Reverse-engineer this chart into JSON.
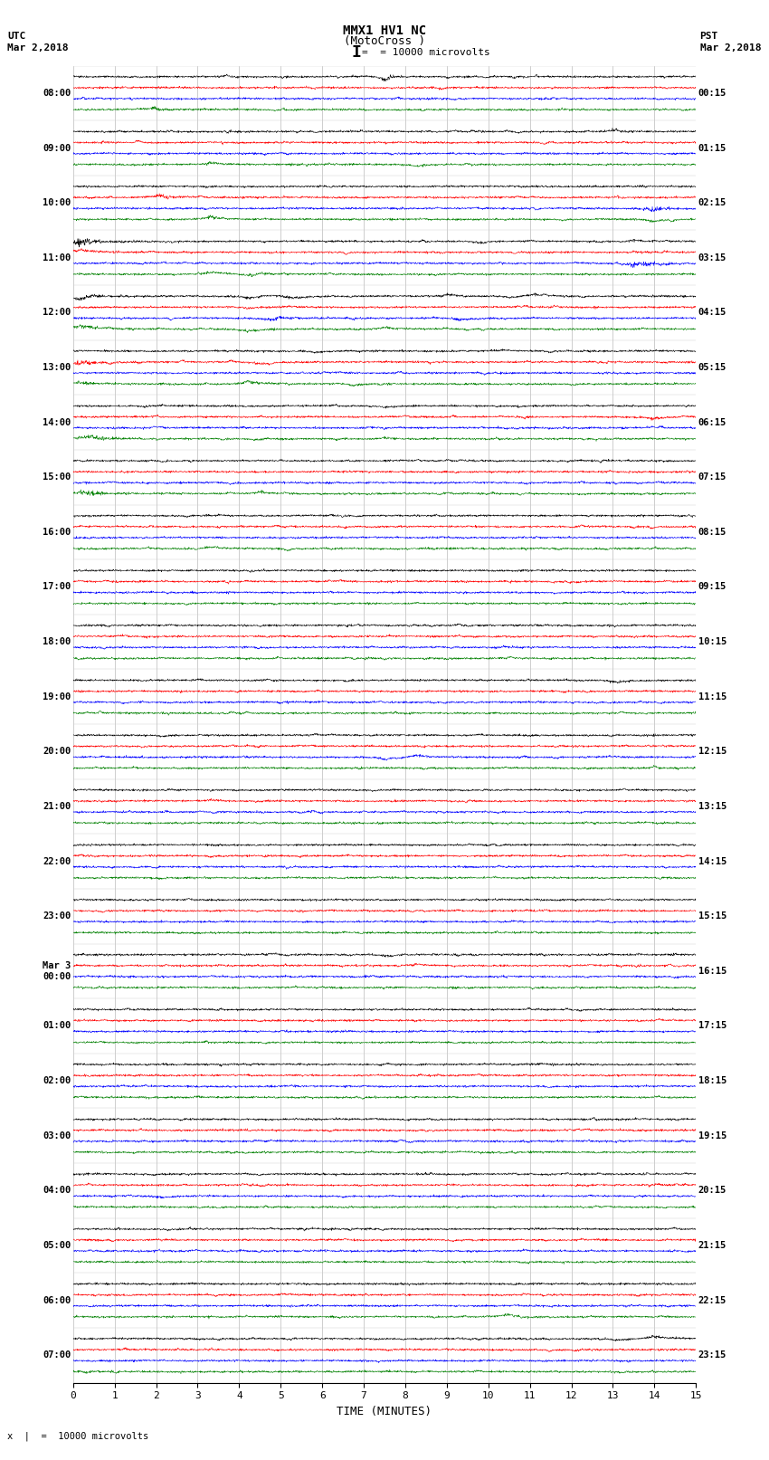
{
  "title_line1": "MMX1 HV1 NC",
  "title_line2": "(MotoCross )",
  "scale_label": "= 10000 microvolts",
  "xlabel": "TIME (MINUTES)",
  "left_label_top": "UTC",
  "left_label_date": "Mar 2,2018",
  "right_label_top": "PST",
  "right_label_date": "Mar 2,2018",
  "footer_label": "10000 microvolts",
  "utc_times": [
    "08:00",
    "09:00",
    "10:00",
    "11:00",
    "12:00",
    "13:00",
    "14:00",
    "15:00",
    "16:00",
    "17:00",
    "18:00",
    "19:00",
    "20:00",
    "21:00",
    "22:00",
    "23:00",
    "Mar 3\n00:00",
    "01:00",
    "02:00",
    "03:00",
    "04:00",
    "05:00",
    "06:00",
    "07:00"
  ],
  "pst_times": [
    "00:15",
    "01:15",
    "02:15",
    "03:15",
    "04:15",
    "05:15",
    "06:15",
    "07:15",
    "08:15",
    "09:15",
    "10:15",
    "11:15",
    "12:15",
    "13:15",
    "14:15",
    "15:15",
    "16:15",
    "17:15",
    "18:15",
    "19:15",
    "20:15",
    "21:15",
    "22:15",
    "23:15"
  ],
  "colors": [
    "black",
    "red",
    "blue",
    "green"
  ],
  "n_hours": 24,
  "x_min": 0,
  "x_max": 15,
  "bg_color": "white",
  "noise_amp": 0.012,
  "channel_sep": 0.28,
  "hour_sep": 1.4,
  "figsize": [
    8.5,
    16.13
  ],
  "dpi": 100,
  "lw": 0.4
}
